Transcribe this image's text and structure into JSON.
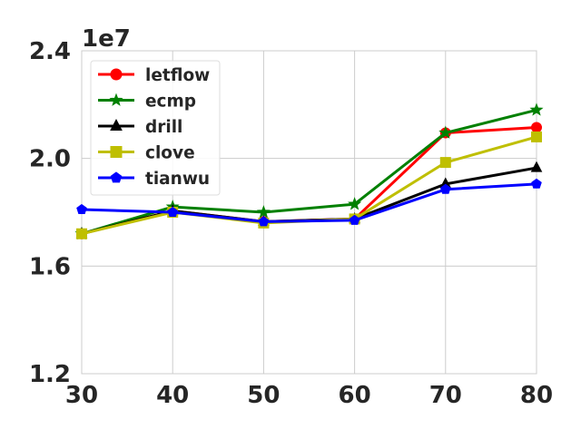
{
  "chart_data": {
    "type": "line",
    "title": "",
    "xlabel": "",
    "ylabel": "",
    "y_scale_label": "1e7",
    "y_scale_factor": 10000000,
    "x": [
      30,
      40,
      50,
      60,
      70,
      80
    ],
    "xlim": [
      30,
      80
    ],
    "ylim": [
      12000000,
      24000000
    ],
    "x_ticks": [
      30,
      40,
      50,
      60,
      70,
      80
    ],
    "x_tick_labels": [
      "30",
      "40",
      "50",
      "60",
      "70",
      "80"
    ],
    "y_ticks": [
      12000000,
      16000000,
      20000000,
      24000000
    ],
    "y_tick_labels": [
      "1.2",
      "1.6",
      "2.0",
      "2.4"
    ],
    "grid": true,
    "legend_position": "top-left",
    "series": [
      {
        "name": "letflow",
        "color": "#ff0000",
        "marker": "circle",
        "values": [
          17200000,
          18050000,
          17650000,
          17750000,
          20950000,
          21150000
        ]
      },
      {
        "name": "ecmp",
        "color": "#008000",
        "marker": "star",
        "values": [
          17200000,
          18200000,
          18000000,
          18300000,
          20950000,
          21800000
        ]
      },
      {
        "name": "drill",
        "color": "#000000",
        "marker": "triangle",
        "values": [
          17200000,
          18050000,
          17650000,
          17750000,
          19050000,
          19650000
        ]
      },
      {
        "name": "clove",
        "color": "#bfbf00",
        "marker": "square",
        "values": [
          17200000,
          18000000,
          17600000,
          17750000,
          19850000,
          20800000
        ]
      },
      {
        "name": "tianwu",
        "color": "#0000ff",
        "marker": "pentagon",
        "values": [
          18100000,
          18000000,
          17650000,
          17700000,
          18850000,
          19050000
        ]
      }
    ]
  }
}
